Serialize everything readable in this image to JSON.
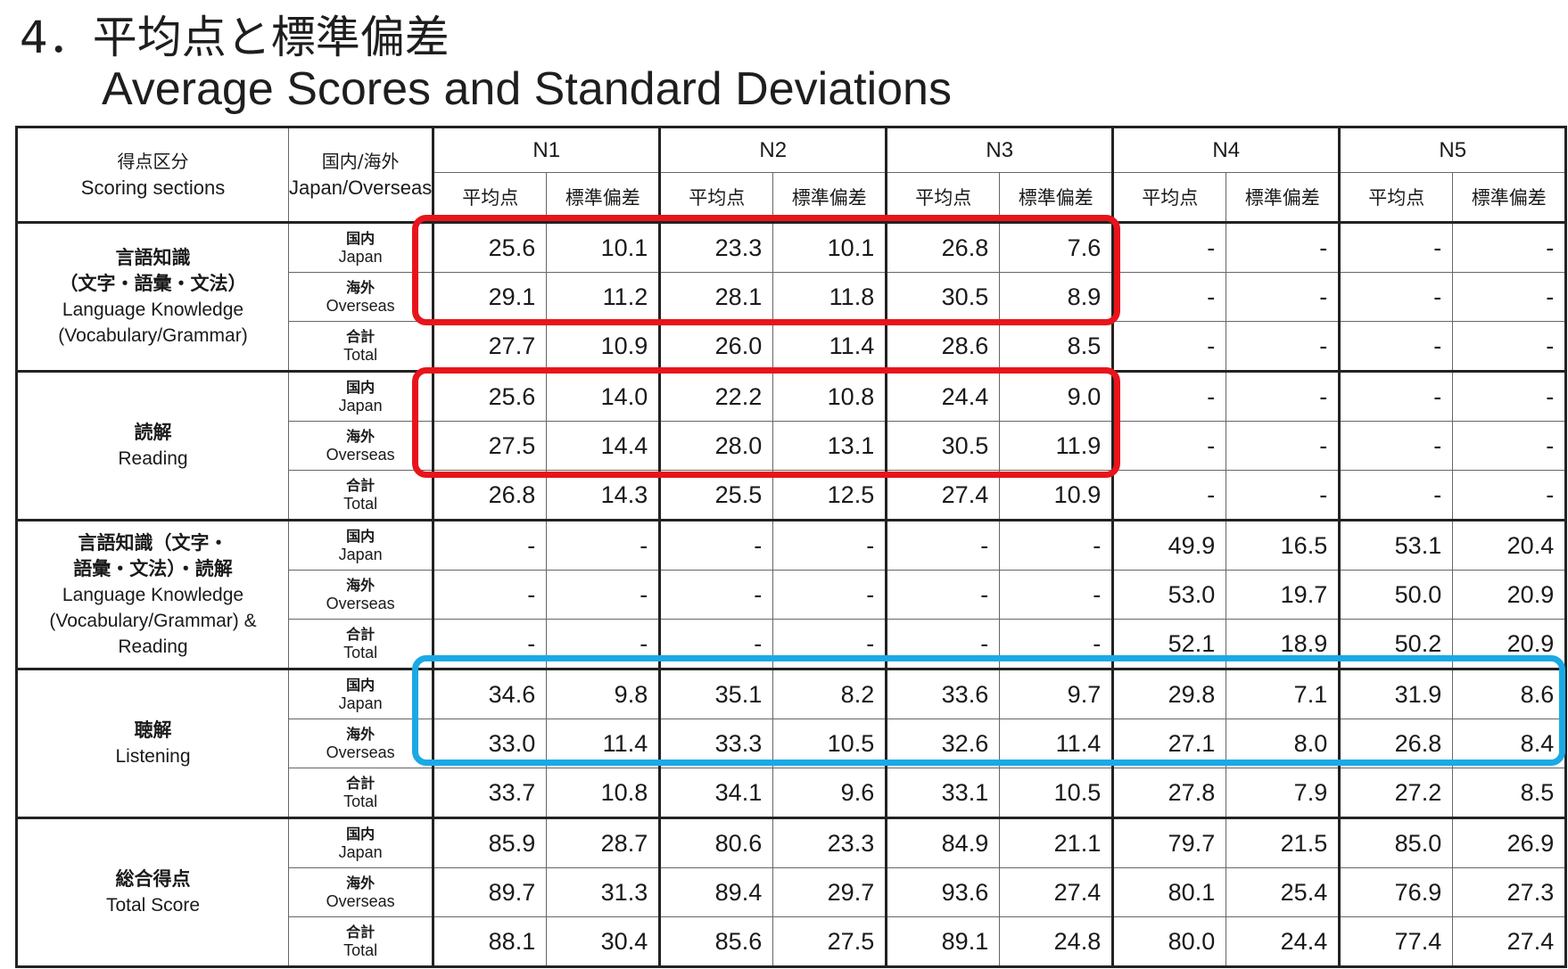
{
  "title": {
    "jp": "4．平均点と標準偏差",
    "en": "Average Scores and Standard Deviations"
  },
  "header": {
    "category_jp": "得点区分",
    "category_en": "Scoring sections",
    "region_jp": "国内/海外",
    "region_en_1": "Japan/",
    "region_en_2": "Overseas",
    "levels": [
      "N1",
      "N2",
      "N3",
      "N4",
      "N5"
    ],
    "avg": "平均点",
    "sd": "標準偏差"
  },
  "regions": [
    {
      "jp": "国内",
      "en": "Japan"
    },
    {
      "jp": "海外",
      "en": "Overseas"
    },
    {
      "jp": "合計",
      "en": "Total"
    }
  ],
  "sections": [
    {
      "jp": [
        "言語知識",
        "（文字・語彙・文法）"
      ],
      "en": [
        "Language Knowledge",
        "(Vocabulary/Grammar)"
      ],
      "rows": [
        [
          "25.6",
          "10.1",
          "23.3",
          "10.1",
          "26.8",
          "7.6",
          "-",
          "-",
          "-",
          "-"
        ],
        [
          "29.1",
          "11.2",
          "28.1",
          "11.8",
          "30.5",
          "8.9",
          "-",
          "-",
          "-",
          "-"
        ],
        [
          "27.7",
          "10.9",
          "26.0",
          "11.4",
          "28.6",
          "8.5",
          "-",
          "-",
          "-",
          "-"
        ]
      ]
    },
    {
      "jp": [
        "読解"
      ],
      "en": [
        "Reading"
      ],
      "rows": [
        [
          "25.6",
          "14.0",
          "22.2",
          "10.8",
          "24.4",
          "9.0",
          "-",
          "-",
          "-",
          "-"
        ],
        [
          "27.5",
          "14.4",
          "28.0",
          "13.1",
          "30.5",
          "11.9",
          "-",
          "-",
          "-",
          "-"
        ],
        [
          "26.8",
          "14.3",
          "25.5",
          "12.5",
          "27.4",
          "10.9",
          "-",
          "-",
          "-",
          "-"
        ]
      ]
    },
    {
      "jp": [
        "言語知識（文字・",
        "語彙・文法）・読解"
      ],
      "en": [
        "Language Knowledge",
        "(Vocabulary/Grammar) &",
        "Reading"
      ],
      "rows": [
        [
          "-",
          "-",
          "-",
          "-",
          "-",
          "-",
          "49.9",
          "16.5",
          "53.1",
          "20.4"
        ],
        [
          "-",
          "-",
          "-",
          "-",
          "-",
          "-",
          "53.0",
          "19.7",
          "50.0",
          "20.9"
        ],
        [
          "-",
          "-",
          "-",
          "-",
          "-",
          "-",
          "52.1",
          "18.9",
          "50.2",
          "20.9"
        ]
      ]
    },
    {
      "jp": [
        "聴解"
      ],
      "en": [
        "Listening"
      ],
      "rows": [
        [
          "34.6",
          "9.8",
          "35.1",
          "8.2",
          "33.6",
          "9.7",
          "29.8",
          "7.1",
          "31.9",
          "8.6"
        ],
        [
          "33.0",
          "11.4",
          "33.3",
          "10.5",
          "32.6",
          "11.4",
          "27.1",
          "8.0",
          "26.8",
          "8.4"
        ],
        [
          "33.7",
          "10.8",
          "34.1",
          "9.6",
          "33.1",
          "10.5",
          "27.8",
          "7.9",
          "27.2",
          "8.5"
        ]
      ]
    },
    {
      "jp": [
        "総合得点"
      ],
      "en": [
        "Total Score"
      ],
      "rows": [
        [
          "85.9",
          "28.7",
          "80.6",
          "23.3",
          "84.9",
          "21.1",
          "79.7",
          "21.5",
          "85.0",
          "26.9"
        ],
        [
          "89.7",
          "31.3",
          "89.4",
          "29.7",
          "93.6",
          "27.4",
          "80.1",
          "25.4",
          "76.9",
          "27.3"
        ],
        [
          "88.1",
          "30.4",
          "85.6",
          "27.5",
          "89.1",
          "24.8",
          "80.0",
          "24.4",
          "77.4",
          "27.4"
        ]
      ]
    }
  ],
  "highlight_colors": {
    "red": "#e8141b",
    "blue": "#1ba9e6"
  }
}
